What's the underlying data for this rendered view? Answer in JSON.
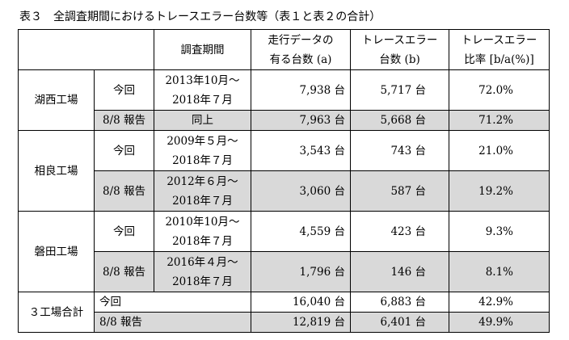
{
  "caption": "表３　全調査期間におけるトレースエラー台数等（表１と表２の合計）",
  "header": {
    "period": "調査期間",
    "col_a_line1": "走行データの",
    "col_a_line2": "有る台数 (a)",
    "col_b_line1": "トレースエラー",
    "col_b_line2": "台数 (b)",
    "col_r_line1": "トレースエラー",
    "col_r_line2": "比率 [b/a(%)]"
  },
  "rows": [
    {
      "factory": "湖西工場",
      "entries": [
        {
          "label": "今回",
          "period1": "2013年10月～",
          "period2": "2018年７月",
          "a": "7,938 台",
          "b": "5,717 台",
          "ratio": "72.0%"
        },
        {
          "label": "8/8 報告",
          "period1": "同上",
          "a": "7,963 台",
          "b": "5,668 台",
          "ratio": "71.2%"
        }
      ]
    },
    {
      "factory": "相良工場",
      "entries": [
        {
          "label": "今回",
          "period1": "2009年５月～",
          "period2": "2018年７月",
          "a": "3,543 台",
          "b": "743 台",
          "ratio": "21.0%"
        },
        {
          "label": "8/8 報告",
          "period1": "2012年６月～",
          "period2": "2018年７月",
          "a": "3,060 台",
          "b": "587 台",
          "ratio": "19.2%"
        }
      ]
    },
    {
      "factory": "磐田工場",
      "entries": [
        {
          "label": "今回",
          "period1": "2010年10月～",
          "period2": "2018年７月",
          "a": "4,559 台",
          "b": "423 台",
          "ratio": "9.3%"
        },
        {
          "label": "8/8 報告",
          "period1": "2016年４月～",
          "period2": "2018年７月",
          "a": "1,796 台",
          "b": "146 台",
          "ratio": "8.1%"
        }
      ]
    },
    {
      "factory": "３工場合計",
      "entries": [
        {
          "label": "今回",
          "a": "16,040 台",
          "b": "6,883 台",
          "ratio": "42.9%"
        },
        {
          "label": "8/8 報告",
          "a": "12,819 台",
          "b": "6,401 台",
          "ratio": "49.9%"
        }
      ]
    }
  ]
}
